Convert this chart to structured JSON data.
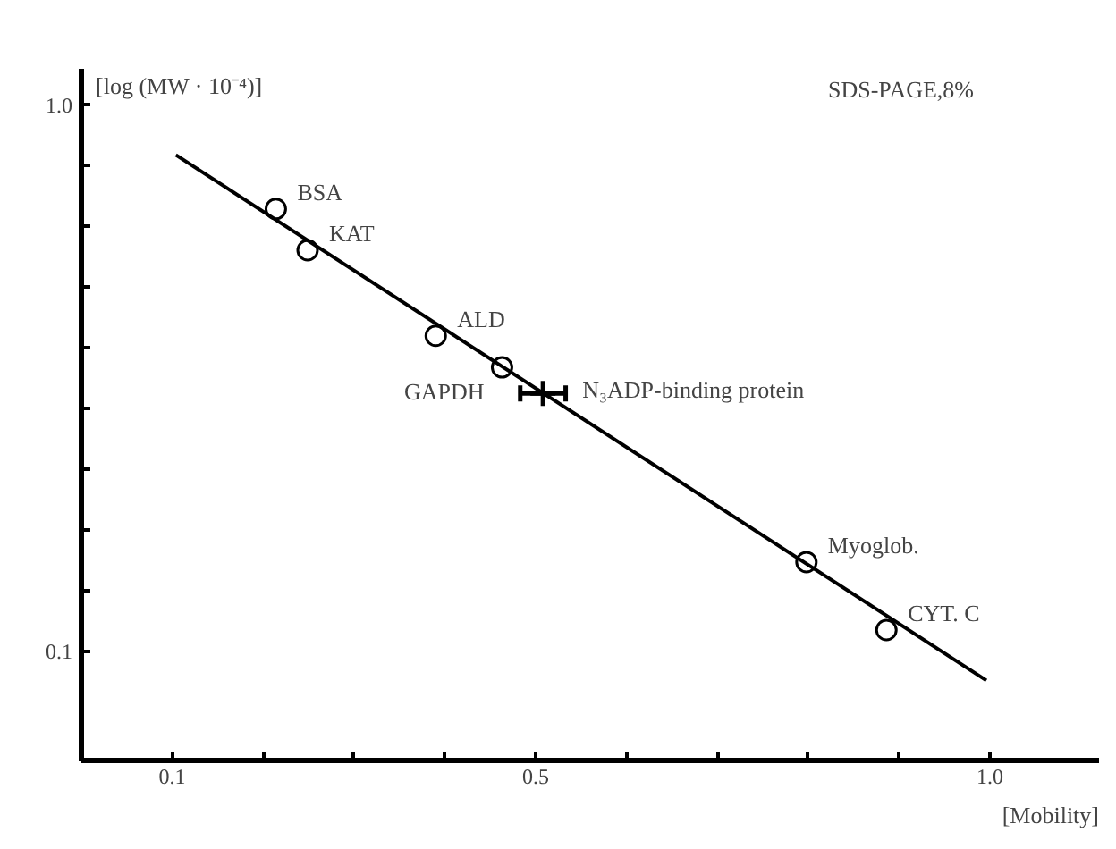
{
  "chart_data": {
    "type": "scatter",
    "xlabel": "[Mobility]",
    "ylabel": "[log (MW · 10⁻⁴)]",
    "xlim": [
      0.0,
      1.12
    ],
    "ylim": [
      -0.08,
      1.06
    ],
    "xticks": [
      {
        "value": 0.1,
        "label": "0.1"
      },
      {
        "value": 0.2,
        "label": null
      },
      {
        "value": 0.3,
        "label": null
      },
      {
        "value": 0.4,
        "label": null
      },
      {
        "value": 0.5,
        "label": "0.5"
      },
      {
        "value": 0.6,
        "label": null
      },
      {
        "value": 0.7,
        "label": null
      },
      {
        "value": 0.8,
        "label": null
      },
      {
        "value": 0.9,
        "label": null
      },
      {
        "value": 1.0,
        "label": "1.0"
      }
    ],
    "yticks": [
      {
        "value": 0.1,
        "label": "0.1"
      },
      {
        "value": 0.2,
        "label": null
      },
      {
        "value": 0.3,
        "label": null
      },
      {
        "value": 0.4,
        "label": null
      },
      {
        "value": 0.5,
        "label": null
      },
      {
        "value": 0.6,
        "label": null
      },
      {
        "value": 0.7,
        "label": null
      },
      {
        "value": 0.8,
        "label": null
      },
      {
        "value": 0.9,
        "label": null
      },
      {
        "value": 1.0,
        "label": "1.0"
      }
    ],
    "grid": false,
    "series": [
      {
        "marker": "circle",
        "color": "#000000",
        "x": [
          0.214,
          0.249,
          0.39,
          0.463,
          0.798,
          0.886
        ],
        "values": [
          0.829,
          0.761,
          0.62,
          0.568,
          0.247,
          0.135
        ]
      },
      {
        "marker": "cross",
        "color": "#000000",
        "x": [
          0.508
        ],
        "values": [
          0.525
        ],
        "xerrors": [
          0.025
        ]
      },
      {
        "type": "line",
        "marker": "none",
        "line_style": "solid",
        "color": "#000000",
        "x": [
          0.104,
          0.996
        ],
        "values": [
          0.918,
          0.052
        ]
      }
    ],
    "annotations": [
      "SDS-PAGE,8%",
      {
        "text": "BSA",
        "x": 0.214,
        "y": 0.829
      },
      {
        "text": "KAT",
        "x": 0.249,
        "y": 0.761
      },
      {
        "text": "ALD",
        "x": 0.39,
        "y": 0.62
      },
      {
        "text": "GAPDH",
        "x": 0.463,
        "y": 0.568
      },
      {
        "text": "N₃ADP-binding protein",
        "x": 0.508,
        "y": 0.525
      },
      {
        "text": "Myoglob.",
        "x": 0.798,
        "y": 0.247
      },
      {
        "text": "CYT. C",
        "x": 0.886,
        "y": 0.135
      }
    ]
  }
}
